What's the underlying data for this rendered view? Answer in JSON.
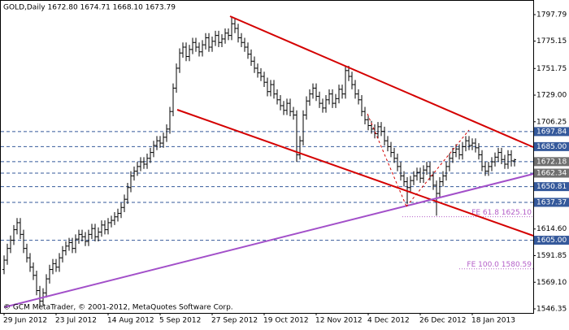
{
  "chart_data": {
    "type": "ohlc",
    "title": "GOLD,Daily  1672.80 1674.71 1668.10 1673.79",
    "footer": "© GCM MetaTrader, © 2001-2012, MetaQuotes Software Corp.",
    "color": "#000000",
    "categories": [
      "29 Jun 2012",
      null,
      null,
      null,
      null,
      null,
      null,
      null,
      null,
      null,
      null,
      null,
      null,
      null,
      null,
      null,
      "23 Jul 2012",
      null,
      null,
      null,
      null,
      null,
      null,
      null,
      null,
      null,
      null,
      null,
      null,
      null,
      null,
      null,
      "14 Aug 2012",
      null,
      null,
      null,
      null,
      null,
      null,
      null,
      null,
      null,
      null,
      null,
      null,
      null,
      null,
      null,
      "5 Sep 2012",
      null,
      null,
      null,
      null,
      null,
      null,
      null,
      null,
      null,
      null,
      null,
      null,
      null,
      null,
      null,
      "27 Sep 2012",
      null,
      null,
      null,
      null,
      null,
      null,
      null,
      null,
      null,
      null,
      null,
      null,
      null,
      null,
      null,
      "19 Oct 2012",
      null,
      null,
      null,
      null,
      null,
      null,
      null,
      null,
      null,
      null,
      null,
      null,
      null,
      null,
      null,
      "12 Nov 2012",
      null,
      null,
      null,
      null,
      null,
      null,
      null,
      null,
      null,
      null,
      null,
      null,
      null,
      null,
      null,
      "4 Dec 2012",
      null,
      null,
      null,
      null,
      null,
      null,
      null,
      null,
      null,
      null,
      null,
      null,
      null,
      null,
      null,
      "26 Dec 2012",
      null,
      null,
      null,
      null,
      null,
      null,
      null,
      null,
      null,
      null,
      null,
      null,
      null,
      null,
      null,
      "18 Jan 2013",
      null,
      null,
      null,
      null,
      null,
      null,
      null,
      null,
      null,
      null,
      null,
      null,
      null
    ],
    "open": [
      1580,
      1588,
      1598,
      1605,
      1614,
      1620,
      1610,
      1598,
      1590,
      1582,
      1575,
      1562,
      1553,
      1560,
      1572,
      1580,
      1585,
      1582,
      1590,
      1596,
      1600,
      1603,
      1598,
      1606,
      1610,
      1608,
      1604,
      1610,
      1615,
      1608,
      1612,
      1618,
      1614,
      1620,
      1622,
      1625,
      1628,
      1633,
      1640,
      1650,
      1660,
      1664,
      1668,
      1672,
      1670,
      1675,
      1680,
      1686,
      1690,
      1688,
      1693,
      1700,
      1715,
      1735,
      1752,
      1765,
      1770,
      1762,
      1768,
      1774,
      1770,
      1766,
      1772,
      1778,
      1770,
      1775,
      1780,
      1774,
      1777,
      1782,
      1780,
      1790,
      1786,
      1778,
      1774,
      1770,
      1764,
      1758,
      1752,
      1748,
      1745,
      1740,
      1732,
      1738,
      1730,
      1725,
      1720,
      1716,
      1722,
      1715,
      1712,
      1678,
      1690,
      1712,
      1724,
      1730,
      1735,
      1728,
      1722,
      1718,
      1725,
      1730,
      1722,
      1726,
      1734,
      1730,
      1750,
      1745,
      1738,
      1730,
      1725,
      1715,
      1708,
      1703,
      1700,
      1696,
      1702,
      1698,
      1690,
      1685,
      1680,
      1675,
      1668,
      1660,
      1655,
      1650,
      1656,
      1660,
      1663,
      1658,
      1665,
      1668,
      1660,
      1652,
      1645,
      1655,
      1660,
      1668,
      1675,
      1680,
      1683,
      1678,
      1685,
      1690,
      1686,
      1688,
      1684,
      1678,
      1668,
      1664,
      1668,
      1672,
      1676,
      1680,
      1674,
      1670,
      1678,
      1672.8
    ],
    "high": [
      1592,
      1602,
      1609,
      1618,
      1624,
      1624,
      1614,
      1602,
      1594,
      1586,
      1579,
      1566,
      1564,
      1576,
      1584,
      1589,
      1589,
      1594,
      1600,
      1604,
      1607,
      1607,
      1610,
      1614,
      1614,
      1612,
      1614,
      1619,
      1619,
      1616,
      1622,
      1622,
      1624,
      1626,
      1629,
      1632,
      1637,
      1644,
      1654,
      1664,
      1668,
      1672,
      1676,
      1676,
      1679,
      1684,
      1690,
      1694,
      1694,
      1697,
      1704,
      1719,
      1739,
      1756,
      1769,
      1774,
      1774,
      1772,
      1778,
      1778,
      1774,
      1776,
      1782,
      1782,
      1779,
      1784,
      1784,
      1781,
      1786,
      1786,
      1796,
      1794,
      1790,
      1782,
      1778,
      1774,
      1768,
      1762,
      1756,
      1752,
      1749,
      1744,
      1742,
      1742,
      1734,
      1729,
      1724,
      1726,
      1726,
      1719,
      1716,
      1694,
      1716,
      1728,
      1734,
      1739,
      1739,
      1732,
      1726,
      1729,
      1734,
      1734,
      1730,
      1738,
      1738,
      1754,
      1754,
      1749,
      1742,
      1734,
      1729,
      1719,
      1712,
      1707,
      1704,
      1706,
      1706,
      1702,
      1694,
      1689,
      1684,
      1679,
      1672,
      1664,
      1659,
      1660,
      1664,
      1667,
      1667,
      1669,
      1672,
      1672,
      1664,
      1656,
      1659,
      1664,
      1672,
      1679,
      1684,
      1687,
      1687,
      1689,
      1694,
      1694,
      1692,
      1692,
      1688,
      1682,
      1672,
      1672,
      1676,
      1680,
      1684,
      1684,
      1678,
      1682,
      1682,
      1674.71
    ],
    "low": [
      1576,
      1584,
      1594,
      1601,
      1610,
      1606,
      1594,
      1586,
      1578,
      1571,
      1558,
      1548,
      1549,
      1556,
      1568,
      1576,
      1578,
      1578,
      1586,
      1592,
      1596,
      1594,
      1594,
      1602,
      1604,
      1600,
      1600,
      1606,
      1604,
      1604,
      1608,
      1610,
      1610,
      1616,
      1618,
      1621,
      1624,
      1629,
      1636,
      1646,
      1656,
      1660,
      1664,
      1666,
      1666,
      1671,
      1676,
      1682,
      1684,
      1684,
      1689,
      1696,
      1711,
      1731,
      1748,
      1761,
      1758,
      1758,
      1764,
      1766,
      1762,
      1762,
      1768,
      1766,
      1766,
      1771,
      1770,
      1770,
      1773,
      1776,
      1776,
      1782,
      1774,
      1770,
      1766,
      1760,
      1754,
      1748,
      1744,
      1741,
      1736,
      1728,
      1728,
      1726,
      1721,
      1716,
      1712,
      1712,
      1711,
      1708,
      1672,
      1674,
      1686,
      1708,
      1720,
      1726,
      1724,
      1718,
      1714,
      1714,
      1721,
      1718,
      1718,
      1722,
      1726,
      1726,
      1741,
      1734,
      1726,
      1721,
      1711,
      1704,
      1699,
      1696,
      1692,
      1692,
      1694,
      1686,
      1681,
      1676,
      1671,
      1664,
      1656,
      1651,
      1636,
      1646,
      1652,
      1656,
      1654,
      1654,
      1661,
      1656,
      1648,
      1626,
      1641,
      1651,
      1656,
      1664,
      1671,
      1676,
      1674,
      1674,
      1681,
      1682,
      1682,
      1680,
      1674,
      1664,
      1660,
      1660,
      1664,
      1668,
      1672,
      1670,
      1666,
      1666,
      1668,
      1668.1
    ],
    "close": [
      1588,
      1598,
      1605,
      1614,
      1620,
      1610,
      1598,
      1590,
      1582,
      1575,
      1562,
      1553,
      1560,
      1572,
      1580,
      1585,
      1582,
      1590,
      1596,
      1600,
      1603,
      1598,
      1606,
      1610,
      1608,
      1604,
      1610,
      1615,
      1608,
      1612,
      1618,
      1614,
      1620,
      1622,
      1625,
      1628,
      1633,
      1640,
      1650,
      1660,
      1664,
      1668,
      1672,
      1670,
      1675,
      1680,
      1686,
      1690,
      1688,
      1693,
      1700,
      1715,
      1735,
      1752,
      1765,
      1770,
      1762,
      1768,
      1774,
      1770,
      1766,
      1772,
      1778,
      1770,
      1775,
      1780,
      1774,
      1777,
      1782,
      1780,
      1790,
      1786,
      1778,
      1774,
      1770,
      1764,
      1758,
      1752,
      1748,
      1745,
      1740,
      1732,
      1738,
      1730,
      1725,
      1720,
      1716,
      1722,
      1715,
      1712,
      1678,
      1690,
      1712,
      1724,
      1730,
      1735,
      1728,
      1722,
      1718,
      1725,
      1730,
      1722,
      1726,
      1734,
      1730,
      1750,
      1745,
      1738,
      1730,
      1725,
      1715,
      1708,
      1703,
      1700,
      1696,
      1702,
      1698,
      1690,
      1685,
      1680,
      1675,
      1668,
      1660,
      1655,
      1650,
      1656,
      1660,
      1663,
      1658,
      1665,
      1668,
      1660,
      1652,
      1645,
      1655,
      1660,
      1668,
      1675,
      1680,
      1683,
      1678,
      1685,
      1690,
      1686,
      1688,
      1684,
      1678,
      1668,
      1664,
      1668,
      1672,
      1676,
      1680,
      1674,
      1670,
      1678,
      1672.8,
      1673.79
    ],
    "ylim": [
      1542.88,
      1803.35
    ],
    "yticks": [
      1797.79,
      1775.15,
      1751.75,
      {
        "value": 1729,
        "label": "1729.00"
      },
      1706.25,
      {
        "value": 1614.6,
        "label": "1614.60"
      },
      1591.85,
      {
        "value": 1569.1,
        "label": "1569.10"
      },
      1546.35
    ],
    "levels": [
      {
        "value": 1697.84,
        "color": "#35599b"
      },
      {
        "value": 1685,
        "label": "1685.00",
        "color": "#35599b"
      },
      {
        "value": 1672.18,
        "color": "#6f6f6f"
      },
      {
        "value": 1662.34,
        "color": "#6f6f6f"
      },
      {
        "value": 1650.81,
        "color": "#35599b"
      },
      {
        "value": 1637.37,
        "color": "#35599b"
      },
      {
        "value": 1605,
        "label": "1605.00",
        "color": "#35599b"
      }
    ],
    "fe_levels": [
      {
        "value": 1625.1,
        "label": "FE 61.8 1625.10"
      },
      {
        "value": 1580.59,
        "label": "FE 100.0 1580.59"
      }
    ],
    "fe_color": "#b45ec8"
  }
}
